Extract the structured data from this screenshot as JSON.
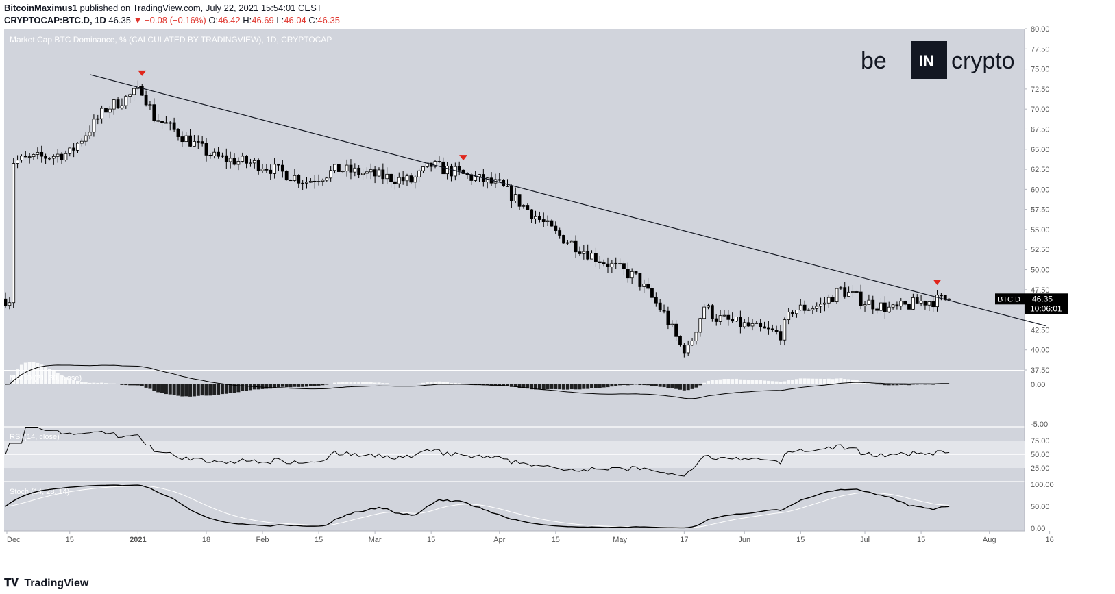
{
  "header": {
    "author": "BitcoinMaximus1",
    "published_text": "published on TradingView.com, July 22, 2021 15:54:01 CEST",
    "symbol": "CRYPTOCAP:BTC.D, 1D",
    "last": "46.35",
    "change": "▼ −0.08 (−0.16%)",
    "o_label": "O:",
    "o": "46.42",
    "h_label": "H:",
    "h": "46.69",
    "l_label": "L:",
    "l": "46.04",
    "c_label": "C:",
    "c": "46.35"
  },
  "brand": {
    "left": "be",
    "mid": "IN",
    "right": "crypto"
  },
  "footer": {
    "logo": "TradingView"
  },
  "colors": {
    "bg": "#d1d4dc",
    "up": "#ffffff",
    "down": "#000000",
    "marker": "#e0251b",
    "priceTag": "#000000"
  },
  "chart_data": [
    {
      "type": "candlestick",
      "title": "Market Cap BTC Dominance, % (CALCULATED BY TRADINGVIEW), 1D, CRYPTOCAP",
      "ylim": [
        37.5,
        80
      ],
      "y_ticks": [
        "80.00",
        "77.50",
        "75.00",
        "72.50",
        "70.00",
        "67.50",
        "65.00",
        "62.50",
        "60.00",
        "57.50",
        "55.00",
        "52.50",
        "50.00",
        "47.50",
        "45.00",
        "42.50",
        "40.00",
        "37.50"
      ],
      "x_ticks": [
        "Dec",
        "15",
        "2021",
        "18",
        "Feb",
        "15",
        "Mar",
        "15",
        "Apr",
        "15",
        "May",
        "17",
        "Jun",
        "15",
        "Jul",
        "15",
        "Aug",
        "16"
      ],
      "price_tag": {
        "symbol": "BTC.D",
        "value": "46.35",
        "countdown": "10:06:01"
      },
      "series_close_keypoints": [
        {
          "x": "2020-12-01",
          "y": 63.5
        },
        {
          "x": "2020-12-15",
          "y": 64.5
        },
        {
          "x": "2020-12-24",
          "y": 70.0
        },
        {
          "x": "2021-01-02",
          "y": 72.5
        },
        {
          "x": "2021-01-05",
          "y": 69.0
        },
        {
          "x": "2021-01-20",
          "y": 64.0
        },
        {
          "x": "2021-02-01",
          "y": 63.0
        },
        {
          "x": "2021-02-12",
          "y": 61.0
        },
        {
          "x": "2021-02-20",
          "y": 62.5
        },
        {
          "x": "2021-03-10",
          "y": 61.0
        },
        {
          "x": "2021-03-15",
          "y": 63.0
        },
        {
          "x": "2021-03-25",
          "y": 61.5
        },
        {
          "x": "2021-04-01",
          "y": 60.5
        },
        {
          "x": "2021-04-15",
          "y": 54.5
        },
        {
          "x": "2021-04-25",
          "y": 51.5
        },
        {
          "x": "2021-05-05",
          "y": 49.0
        },
        {
          "x": "2021-05-12",
          "y": 44.5
        },
        {
          "x": "2021-05-16",
          "y": 40.5
        },
        {
          "x": "2021-05-18",
          "y": 40.0
        },
        {
          "x": "2021-05-22",
          "y": 45.5
        },
        {
          "x": "2021-05-25",
          "y": 44.0
        },
        {
          "x": "2021-06-05",
          "y": 42.5
        },
        {
          "x": "2021-06-10",
          "y": 42.0
        },
        {
          "x": "2021-06-13",
          "y": 45.0
        },
        {
          "x": "2021-06-20",
          "y": 45.5
        },
        {
          "x": "2021-06-25",
          "y": 47.5
        },
        {
          "x": "2021-07-01",
          "y": 46.0
        },
        {
          "x": "2021-07-08",
          "y": 45.0
        },
        {
          "x": "2021-07-15",
          "y": 46.0
        },
        {
          "x": "2021-07-22",
          "y": 46.35
        }
      ],
      "trendline": [
        {
          "x": "2020-12-20",
          "y": 74.3
        },
        {
          "x": "2021-08-15",
          "y": 43.0
        }
      ],
      "resistance_markers": [
        "2021-01-02",
        "2021-03-23",
        "2021-07-19"
      ]
    },
    {
      "type": "line+histogram",
      "label": "MACD (21, 30, close)",
      "y_ticks": [
        "0.00",
        "-5.00"
      ]
    },
    {
      "type": "line",
      "label": "RSI (14, close)",
      "y_ticks": [
        "75.00",
        "50.00",
        "25.00"
      ]
    },
    {
      "type": "line",
      "label": "Stoch (14, 28, 14)",
      "y_ticks": [
        "100.00",
        "50.00",
        "0.00"
      ]
    }
  ]
}
